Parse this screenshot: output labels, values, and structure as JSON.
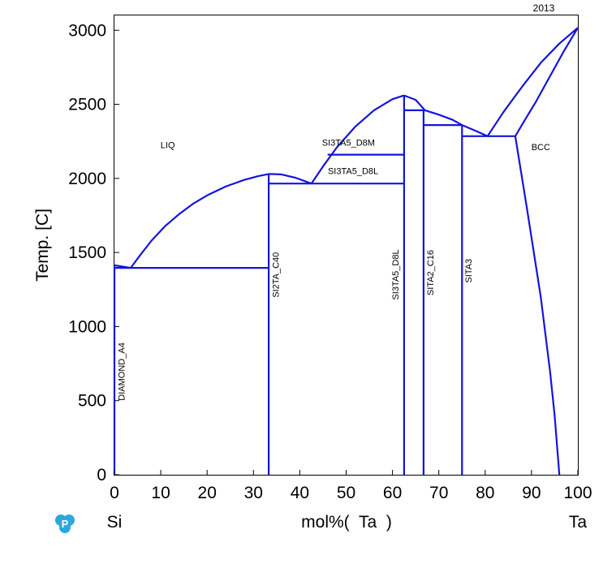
{
  "chart_data": {
    "type": "line",
    "year": "2013",
    "xlabel": "mol%(  Ta  )",
    "ylabel": "Temp.  [C]",
    "x_left_element": "Si",
    "x_right_element": "Ta",
    "xlim": [
      0,
      100
    ],
    "ylim": [
      0,
      3100
    ],
    "xticks": [
      0,
      10,
      20,
      30,
      40,
      50,
      60,
      70,
      80,
      90,
      100
    ],
    "yticks": [
      0,
      500,
      1000,
      1500,
      2000,
      2500,
      3000
    ],
    "xtick_labels": [
      "0",
      "10",
      "20",
      "30",
      "40",
      "50",
      "60",
      "70",
      "80",
      "90",
      "100"
    ],
    "ytick_labels": [
      "0",
      "500",
      "1000",
      "1500",
      "2000",
      "2500",
      "3000"
    ],
    "line_color": "#1414dc",
    "logo_icon": "thermo-calc-logo-icon",
    "phase_labels": [
      {
        "text": "LIQ",
        "x": 11.5,
        "y": 2205,
        "rotate": false
      },
      {
        "text": "BCC",
        "x": 92,
        "y": 2190,
        "rotate": false
      },
      {
        "text": "SI3TA5_D8M",
        "x": 50.5,
        "y": 2220,
        "rotate": false
      },
      {
        "text": "SI3TA5_D8L",
        "x": 51.5,
        "y": 2030,
        "rotate": false
      },
      {
        "text": "DIAMOND_A4",
        "x": 2.2,
        "y": 500,
        "rotate": true
      },
      {
        "text": "SI2TA_C40",
        "x": 35.5,
        "y": 1195,
        "rotate": true
      },
      {
        "text": "SI3TA5_D8L",
        "x": 61.3,
        "y": 1180,
        "rotate": true
      },
      {
        "text": "SITA2_C16",
        "x": 68.8,
        "y": 1210,
        "rotate": true
      },
      {
        "text": "SITA3",
        "x": 77.1,
        "y": 1295,
        "rotate": true
      }
    ],
    "series": [
      {
        "values": [
          [
            0,
            1414
          ],
          [
            1.7,
            1405
          ],
          [
            3.5,
            1396
          ]
        ]
      },
      {
        "values": [
          [
            3.5,
            1396
          ],
          [
            5.5,
            1480
          ],
          [
            8,
            1580
          ],
          [
            11,
            1680
          ],
          [
            14,
            1760
          ],
          [
            17,
            1830
          ],
          [
            20,
            1885
          ],
          [
            24,
            1945
          ],
          [
            28,
            1990
          ],
          [
            31,
            2015
          ],
          [
            33.3,
            2030
          ]
        ]
      },
      {
        "values": [
          [
            33.3,
            2030
          ],
          [
            36,
            2027
          ],
          [
            39,
            2005
          ],
          [
            42.5,
            1965
          ]
        ]
      },
      {
        "values": [
          [
            42.5,
            1965
          ],
          [
            45,
            2080
          ],
          [
            48,
            2210
          ],
          [
            52,
            2350
          ],
          [
            56,
            2460
          ],
          [
            60,
            2535
          ],
          [
            62.5,
            2560
          ]
        ]
      },
      {
        "values": [
          [
            62.5,
            2560
          ],
          [
            65,
            2530
          ],
          [
            67,
            2460
          ],
          [
            70,
            2430
          ],
          [
            73,
            2395
          ],
          [
            75,
            2360
          ]
        ]
      },
      {
        "values": [
          [
            75,
            2360
          ],
          [
            78,
            2320
          ],
          [
            80.5,
            2285
          ]
        ]
      },
      {
        "values": [
          [
            80.5,
            2285
          ],
          [
            84,
            2450
          ],
          [
            88,
            2620
          ],
          [
            92,
            2780
          ],
          [
            96,
            2910
          ],
          [
            100,
            3017
          ]
        ]
      },
      {
        "values": [
          [
            100,
            3017
          ],
          [
            97,
            2860
          ],
          [
            94,
            2690
          ],
          [
            91,
            2520
          ],
          [
            88.5,
            2390
          ],
          [
            86.5,
            2285
          ]
        ]
      },
      {
        "values": [
          [
            86.5,
            2285
          ],
          [
            89,
            1800
          ],
          [
            92,
            1200
          ],
          [
            94,
            700
          ],
          [
            95,
            400
          ],
          [
            96,
            0
          ]
        ]
      },
      {
        "values": [
          [
            0,
            1396
          ],
          [
            33.3,
            1396
          ]
        ]
      },
      {
        "values": [
          [
            33.3,
            1965
          ],
          [
            62.5,
            1965
          ]
        ]
      },
      {
        "values": [
          [
            46,
            2160
          ],
          [
            62.5,
            2160
          ]
        ]
      },
      {
        "values": [
          [
            62.5,
            2460
          ],
          [
            67,
            2460
          ]
        ]
      },
      {
        "values": [
          [
            66.7,
            2360
          ],
          [
            75,
            2360
          ]
        ]
      },
      {
        "values": [
          [
            75,
            2285
          ],
          [
            86.5,
            2285
          ]
        ]
      },
      {
        "values": [
          [
            33.3,
            0
          ],
          [
            33.3,
            2030
          ]
        ]
      },
      {
        "values": [
          [
            62.5,
            0
          ],
          [
            62.5,
            2560
          ]
        ]
      },
      {
        "values": [
          [
            66.7,
            0
          ],
          [
            66.7,
            2460
          ]
        ]
      },
      {
        "values": [
          [
            75,
            0
          ],
          [
            75,
            2360
          ]
        ]
      },
      {
        "values": [
          [
            0,
            0
          ],
          [
            0,
            1414
          ]
        ]
      }
    ]
  }
}
